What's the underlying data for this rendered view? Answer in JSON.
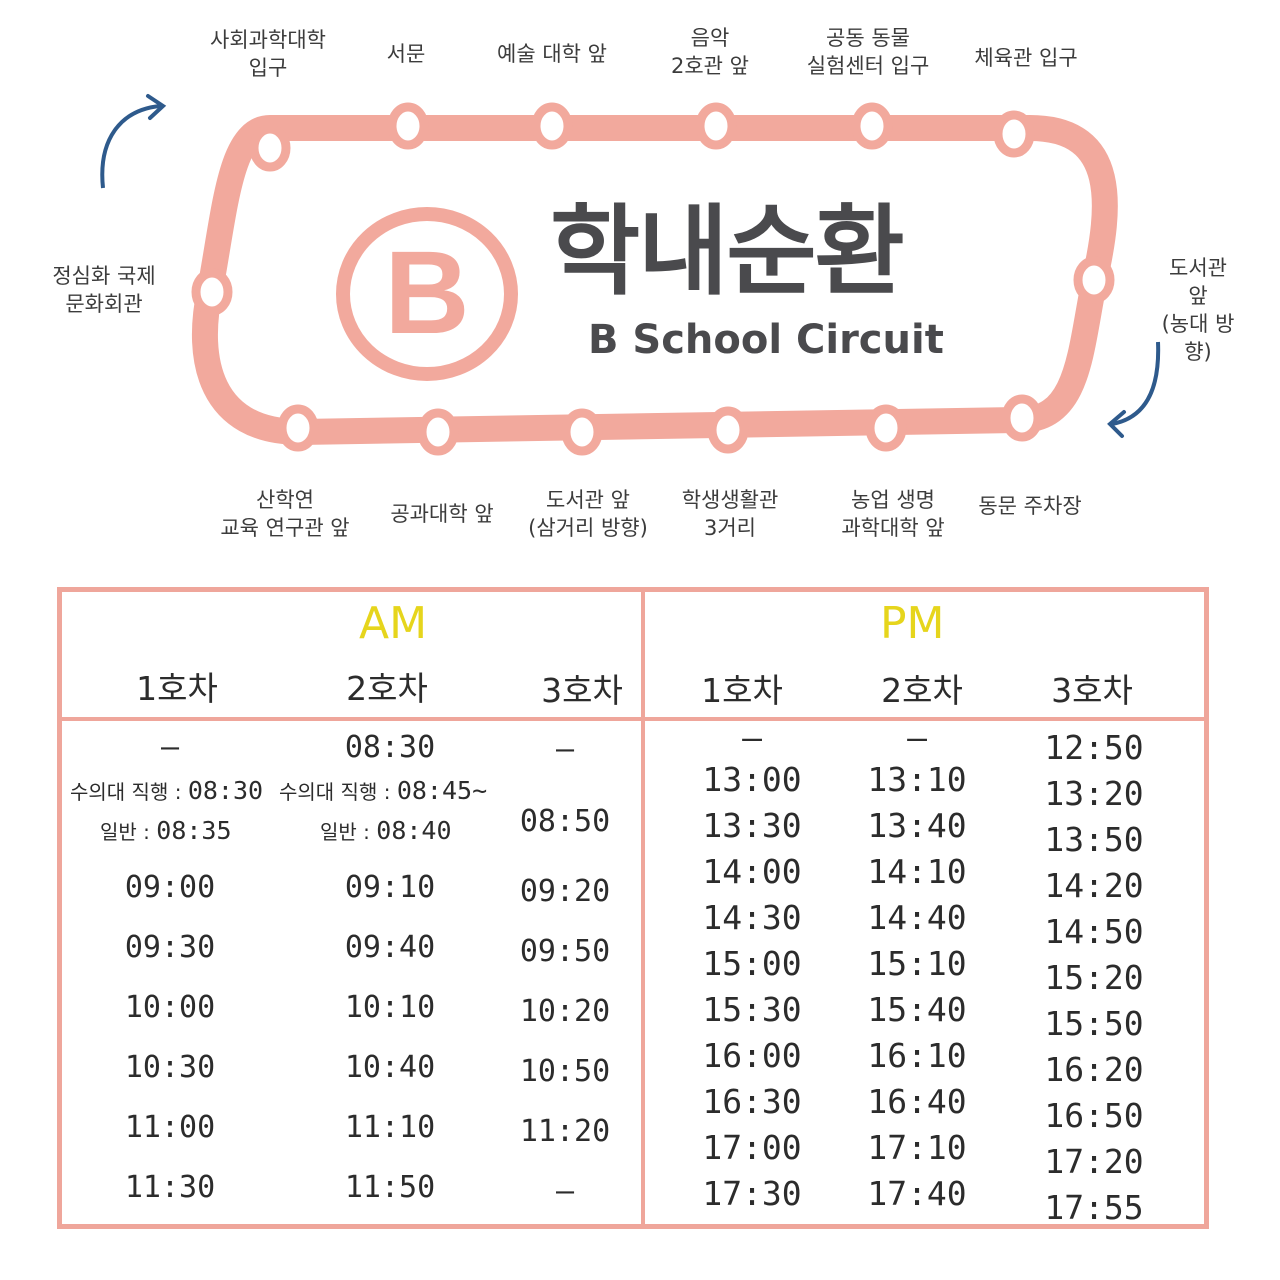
{
  "title": {
    "korean": "학내순환",
    "english": "B School Circuit",
    "badge_letter": "B"
  },
  "colors": {
    "route": "#f2a99d",
    "accent_yellow": "#e6d51c",
    "arrow": "#2e5a8c",
    "text": "#3a3a3a"
  },
  "stops_top": [
    {
      "name": "사회과학대학\n입구"
    },
    {
      "name": "서문"
    },
    {
      "name": "예술 대학 앞"
    },
    {
      "name": "음악\n2호관 앞"
    },
    {
      "name": "공동 동물\n실험센터 입구"
    },
    {
      "name": "체육관 입구"
    }
  ],
  "stop_right": {
    "name": "도서관 앞\n(농대 방향)"
  },
  "stops_bottom": [
    {
      "name": "산학연\n교육 연구관 앞"
    },
    {
      "name": "공과대학 앞"
    },
    {
      "name": "도서관 앞\n(삼거리 방향)"
    },
    {
      "name": "학생생활관\n3거리"
    },
    {
      "name": "농업 생명\n과학대학 앞"
    },
    {
      "name": "동문 주차장"
    }
  ],
  "stop_left": {
    "name": "정심화 국제\n문화회관"
  },
  "timetable": {
    "am": {
      "label": "AM",
      "buses": [
        "1호차",
        "2호차",
        "3호차"
      ],
      "row0": [
        "–",
        "08:30",
        "–"
      ],
      "notes": {
        "bus1_direct_label": "수의대 직행 : ",
        "bus1_direct_time": "08:30",
        "bus1_general_label": "일반 : ",
        "bus1_general_time": "08:35",
        "bus2_direct_label": "수의대 직행 : ",
        "bus2_direct_time": "08:45~",
        "bus2_general_label": "일반 : ",
        "bus2_general_time": "08:40",
        "bus3_time": "08:50"
      },
      "rows": [
        [
          "09:00",
          "09:10",
          "09:20"
        ],
        [
          "09:30",
          "09:40",
          "09:50"
        ],
        [
          "10:00",
          "10:10",
          "10:20"
        ],
        [
          "10:30",
          "10:40",
          "10:50"
        ],
        [
          "11:00",
          "11:10",
          "11:20"
        ],
        [
          "11:30",
          "11:50",
          "–"
        ]
      ]
    },
    "pm": {
      "label": "PM",
      "buses": [
        "1호차",
        "2호차",
        "3호차"
      ],
      "bus1": [
        "–",
        "13:00",
        "13:30",
        "14:00",
        "14:30",
        "15:00",
        "15:30",
        "16:00",
        "16:30",
        "17:00",
        "17:30"
      ],
      "bus2": [
        "–",
        "13:10",
        "13:40",
        "14:10",
        "14:40",
        "15:10",
        "15:40",
        "16:10",
        "16:40",
        "17:10",
        "17:40"
      ],
      "bus3": [
        "12:50",
        "13:20",
        "13:50",
        "14:20",
        "14:50",
        "15:20",
        "15:50",
        "16:20",
        "16:50",
        "17:20",
        "17:55"
      ]
    }
  }
}
